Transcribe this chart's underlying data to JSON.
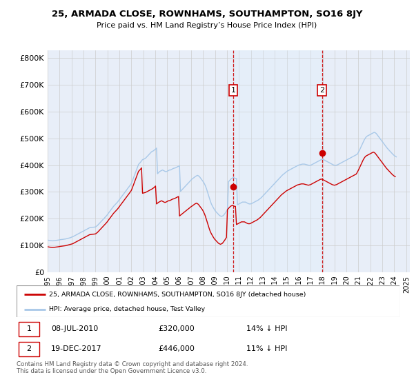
{
  "title": "25, ARMADA CLOSE, ROWNHAMS, SOUTHAMPTON, SO16 8JY",
  "subtitle": "Price paid vs. HM Land Registry’s House Price Index (HPI)",
  "yticks": [
    0,
    100000,
    200000,
    300000,
    400000,
    500000,
    600000,
    700000,
    800000
  ],
  "ytick_labels": [
    "£0",
    "£100K",
    "£200K",
    "£300K",
    "£400K",
    "£500K",
    "£600K",
    "£700K",
    "£800K"
  ],
  "ylim": [
    0,
    830000
  ],
  "hpi_color": "#a8c8e8",
  "price_color": "#cc0000",
  "vline_color": "#cc0000",
  "shade_color": "#ddeeff",
  "legend_property_label": "25, ARMADA CLOSE, ROWNHAMS, SOUTHAMPTON, SO16 8JY (detached house)",
  "legend_hpi_label": "HPI: Average price, detached house, Test Valley",
  "note1_label": "1",
  "note1_date": "08-JUL-2010",
  "note1_price": "£320,000",
  "note1_pct": "14% ↓ HPI",
  "note2_label": "2",
  "note2_date": "19-DEC-2017",
  "note2_price": "£446,000",
  "note2_pct": "11% ↓ HPI",
  "footer": "Contains HM Land Registry data © Crown copyright and database right 2024.\nThis data is licensed under the Open Government Licence v3.0.",
  "sale1_year": 2010.52,
  "sale1_price": 320000,
  "sale2_year": 2017.96,
  "sale2_price": 446000,
  "x_tick_years": [
    1995,
    1996,
    1997,
    1998,
    1999,
    2000,
    2001,
    2002,
    2003,
    2004,
    2005,
    2006,
    2007,
    2008,
    2009,
    2010,
    2011,
    2012,
    2013,
    2014,
    2015,
    2016,
    2017,
    2018,
    2019,
    2020,
    2021,
    2022,
    2023,
    2024,
    2025
  ],
  "background_color": "#e8eef8",
  "hpi_monthly": [
    120000,
    119000,
    118500,
    118000,
    117500,
    117000,
    117500,
    118000,
    118500,
    119000,
    119500,
    120000,
    121000,
    121500,
    122000,
    122500,
    123000,
    123500,
    124000,
    125000,
    126000,
    127000,
    128000,
    129000,
    131000,
    132000,
    134000,
    136000,
    138000,
    140000,
    142000,
    144000,
    146000,
    148000,
    150000,
    152000,
    154000,
    156000,
    158000,
    160000,
    162000,
    164000,
    166000,
    166500,
    167000,
    167500,
    168000,
    168500,
    169000,
    172000,
    175000,
    179000,
    183000,
    187000,
    191000,
    195000,
    199000,
    203000,
    207000,
    211000,
    216000,
    221000,
    226000,
    231000,
    236000,
    241000,
    246000,
    250000,
    254000,
    258000,
    262000,
    267000,
    272000,
    277000,
    282000,
    287000,
    292000,
    297000,
    302000,
    307000,
    312000,
    317000,
    322000,
    327000,
    333000,
    343000,
    353000,
    363000,
    373000,
    383000,
    393000,
    403000,
    407000,
    411000,
    416000,
    421000,
    422000,
    424000,
    426000,
    430000,
    434000,
    438000,
    442000,
    446000,
    450000,
    452000,
    454000,
    457000,
    460000,
    464000,
    368000,
    372000,
    376000,
    378000,
    380000,
    382000,
    380000,
    378000,
    376000,
    376000,
    378000,
    380000,
    382000,
    382000,
    384000,
    386000,
    388000,
    389000,
    390000,
    392000,
    394000,
    396000,
    398000,
    302000,
    306000,
    310000,
    314000,
    318000,
    322000,
    326000,
    330000,
    334000,
    338000,
    342000,
    346000,
    350000,
    352000,
    355000,
    358000,
    360000,
    362000,
    360000,
    357000,
    352000,
    347000,
    342000,
    337000,
    330000,
    322000,
    312000,
    300000,
    288000,
    276000,
    264000,
    254000,
    247000,
    240000,
    234000,
    228000,
    224000,
    220000,
    216000,
    212000,
    210000,
    208000,
    210000,
    212000,
    217000,
    222000,
    228000,
    234000,
    338000,
    342000,
    346000,
    350000,
    352000,
    354000,
    352000,
    350000,
    350000,
    252000,
    254000,
    256000,
    258000,
    260000,
    262000,
    262000,
    262000,
    262000,
    260000,
    258000,
    256000,
    255000,
    255000,
    256000,
    258000,
    260000,
    262000,
    264000,
    266000,
    268000,
    270000,
    273000,
    276000,
    279000,
    283000,
    287000,
    291000,
    295000,
    299000,
    303000,
    307000,
    311000,
    315000,
    319000,
    323000,
    327000,
    331000,
    335000,
    339000,
    343000,
    347000,
    351000,
    355000,
    359000,
    363000,
    366000,
    369000,
    372000,
    375000,
    378000,
    380000,
    382000,
    384000,
    386000,
    388000,
    390000,
    392000,
    394000,
    396000,
    398000,
    400000,
    401000,
    402000,
    403000,
    404000,
    404000,
    404000,
    403000,
    402000,
    401000,
    400000,
    399000,
    400000,
    401000,
    403000,
    405000,
    407000,
    409000,
    411000,
    413000,
    415000,
    417000,
    419000,
    421000,
    422000,
    421000,
    419000,
    417000,
    415000,
    413000,
    411000,
    409000,
    407000,
    405000,
    403000,
    401000,
    400000,
    399000,
    400000,
    401000,
    403000,
    405000,
    407000,
    409000,
    411000,
    413000,
    415000,
    417000,
    419000,
    421000,
    423000,
    425000,
    427000,
    429000,
    431000,
    433000,
    435000,
    437000,
    439000,
    441000,
    448000,
    455000,
    463000,
    471000,
    479000,
    487000,
    495000,
    501000,
    506000,
    509000,
    511000,
    513000,
    515000,
    517000,
    519000,
    521000,
    523000,
    521000,
    518000,
    513000,
    508000,
    503000,
    498000,
    493000,
    488000,
    483000,
    478000,
    473000,
    468000,
    463000,
    459000,
    455000,
    451000,
    447000,
    443000,
    439000,
    436000,
    433000,
    431000
  ],
  "red_monthly": [
    95000,
    94200,
    93500,
    93000,
    92500,
    92200,
    92500,
    93000,
    93500,
    94000,
    94500,
    95000,
    96000,
    96500,
    97000,
    97500,
    98000,
    98500,
    99000,
    100000,
    101000,
    102000,
    103000,
    104000,
    105000,
    106000,
    108000,
    110000,
    112000,
    114000,
    116000,
    118000,
    120000,
    122000,
    124000,
    126000,
    128000,
    130000,
    132000,
    134000,
    136000,
    138000,
    140000,
    140500,
    141000,
    141500,
    142000,
    142500,
    143000,
    146000,
    149000,
    153000,
    157000,
    161000,
    165000,
    169000,
    173000,
    177000,
    181000,
    185000,
    190000,
    195000,
    200000,
    205000,
    210000,
    215000,
    220000,
    224000,
    228000,
    232000,
    236000,
    241000,
    246000,
    251000,
    256000,
    261000,
    266000,
    271000,
    276000,
    281000,
    286000,
    291000,
    296000,
    301000,
    307000,
    317000,
    327000,
    337000,
    347000,
    357000,
    367000,
    377000,
    381000,
    385000,
    390000,
    295000,
    296000,
    297000,
    298000,
    300000,
    302000,
    304000,
    306000,
    308000,
    310000,
    312000,
    315000,
    318000,
    322000,
    255000,
    258000,
    261000,
    263000,
    265000,
    267000,
    265000,
    263000,
    261000,
    261000,
    263000,
    265000,
    267000,
    267000,
    269000,
    271000,
    273000,
    274000,
    275000,
    277000,
    279000,
    281000,
    283000,
    210000,
    213000,
    216000,
    219000,
    222000,
    225000,
    228000,
    231000,
    234000,
    237000,
    240000,
    243000,
    246000,
    248000,
    251000,
    254000,
    256000,
    258000,
    256000,
    253000,
    248000,
    243000,
    238000,
    233000,
    226000,
    218000,
    208000,
    196000,
    184000,
    172000,
    160000,
    150000,
    143000,
    136000,
    130000,
    124000,
    120000,
    116000,
    112000,
    108000,
    106000,
    104000,
    106000,
    108000,
    113000,
    118000,
    124000,
    130000,
    234000,
    238000,
    242000,
    246000,
    248000,
    250000,
    248000,
    246000,
    246000,
    178000,
    180000,
    182000,
    184000,
    186000,
    188000,
    188000,
    188000,
    188000,
    186000,
    184000,
    182000,
    181000,
    181000,
    182000,
    184000,
    186000,
    188000,
    190000,
    192000,
    194000,
    196000,
    199000,
    202000,
    205000,
    209000,
    213000,
    217000,
    221000,
    225000,
    229000,
    233000,
    237000,
    241000,
    245000,
    249000,
    253000,
    257000,
    261000,
    265000,
    269000,
    273000,
    277000,
    281000,
    285000,
    289000,
    292000,
    295000,
    298000,
    301000,
    304000,
    306000,
    308000,
    310000,
    312000,
    314000,
    316000,
    318000,
    320000,
    322000,
    324000,
    326000,
    327000,
    328000,
    329000,
    330000,
    330000,
    330000,
    329000,
    328000,
    327000,
    326000,
    325000,
    326000,
    327000,
    329000,
    331000,
    333000,
    335000,
    337000,
    339000,
    341000,
    343000,
    345000,
    347000,
    348000,
    347000,
    345000,
    343000,
    341000,
    339000,
    337000,
    335000,
    333000,
    331000,
    329000,
    327000,
    326000,
    325000,
    326000,
    327000,
    329000,
    331000,
    333000,
    335000,
    337000,
    339000,
    341000,
    343000,
    345000,
    347000,
    349000,
    351000,
    353000,
    355000,
    357000,
    359000,
    361000,
    363000,
    365000,
    367000,
    374000,
    381000,
    389000,
    397000,
    405000,
    413000,
    421000,
    427000,
    432000,
    435000,
    437000,
    439000,
    441000,
    443000,
    445000,
    447000,
    449000,
    447000,
    444000,
    439000,
    434000,
    429000,
    424000,
    419000,
    414000,
    409000,
    404000,
    399000,
    394000,
    389000,
    385000,
    381000,
    377000,
    373000,
    369000,
    365000,
    362000,
    359000,
    357000
  ]
}
